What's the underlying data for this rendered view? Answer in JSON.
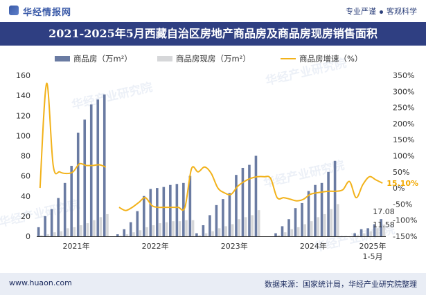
{
  "header": {
    "brand": "华经情报网",
    "slogan_left": "专业严谨",
    "slogan_right": "客观科学"
  },
  "title": "2021-2025年5月西藏自治区房地产商品房及商品房现房销售面积",
  "footer": {
    "website": "www.huaon.com",
    "source": "数据来源：国家统计局，华经产业研究院整理"
  },
  "watermarks": [
    "华经产业研究院",
    "www.huaon.com"
  ],
  "colors": {
    "brand_blue": "#2f3f82",
    "bar_main": "#6a7ba2",
    "bar_secondary": "#d6d7d9",
    "line": "#f2b21a",
    "end_label_growth": "#f2a900"
  },
  "chart_data": {
    "type": "bar",
    "legend_position": "top",
    "x_tick_labels": [
      "2021年",
      "2022年",
      "2023年",
      "2024年",
      "2025年",
      "1-5月"
    ],
    "y_left_ticks": [
      0,
      20,
      40,
      60,
      80,
      100,
      120,
      140,
      160
    ],
    "y_right_ticks": [
      "-150%",
      "-100%",
      "-50%",
      "0%",
      "50%",
      "100%",
      "150%",
      "200%",
      "250%",
      "300%",
      "350%"
    ],
    "ylim_left": [
      0,
      160
    ],
    "ylim_right": [
      -150,
      350
    ],
    "end_labels": {
      "area": "17.08",
      "existing": "11.58",
      "growth": "15.10%"
    },
    "categories": [
      "2021-01",
      "2021-02",
      "2021-03",
      "2021-04",
      "2021-05",
      "2021-06",
      "2021-07",
      "2021-08",
      "2021-09",
      "2021-10",
      "2021-11",
      "2021-12",
      "2022-01",
      "2022-02",
      "2022-03",
      "2022-04",
      "2022-05",
      "2022-06",
      "2022-07",
      "2022-08",
      "2022-09",
      "2022-10",
      "2022-11",
      "2022-12",
      "2023-01",
      "2023-02",
      "2023-03",
      "2023-04",
      "2023-05",
      "2023-06",
      "2023-07",
      "2023-08",
      "2023-09",
      "2023-10",
      "2023-11",
      "2023-12",
      "2024-01",
      "2024-02",
      "2024-03",
      "2024-04",
      "2024-05",
      "2024-06",
      "2024-07",
      "2024-08",
      "2024-09",
      "2024-10",
      "2024-11",
      "2024-12",
      "2025-01",
      "2025-02",
      "2025-03",
      "2025-04",
      "2025-05"
    ],
    "series": [
      {
        "name": "商品房（万m²）",
        "kind": "bar",
        "axis": "left",
        "values": [
          9,
          20,
          27,
          38,
          53,
          70,
          103,
          116,
          131,
          136,
          141,
          0,
          2,
          7,
          14,
          25,
          40,
          47,
          48,
          49,
          51,
          52,
          53,
          60,
          3,
          11,
          21,
          31,
          37,
          43,
          61,
          68,
          71,
          80,
          0,
          0,
          3,
          10,
          17,
          28,
          33,
          45,
          51,
          53,
          64,
          75,
          0,
          0,
          3,
          7,
          8,
          12,
          17.08
        ]
      },
      {
        "name": "商品房现房（万m²）",
        "kind": "bar",
        "axis": "left",
        "values": [
          1,
          2,
          4,
          5,
          8,
          9,
          11,
          13,
          16,
          19,
          22,
          0,
          0.5,
          2,
          4,
          6,
          9,
          11,
          13,
          14,
          15,
          15,
          16,
          16,
          1,
          3,
          5,
          8,
          10,
          12,
          17,
          19,
          21,
          26,
          0,
          0,
          1,
          4,
          7,
          9,
          12,
          15,
          19,
          22,
          27,
          32,
          0,
          0,
          1,
          3,
          5,
          8,
          11.58
        ]
      },
      {
        "name": "商品房增速（%）",
        "kind": "line",
        "axis": "right",
        "values": [
          0,
          325,
          70,
          50,
          45,
          50,
          75,
          70,
          70,
          72,
          65,
          null,
          -60,
          -70,
          -60,
          -45,
          -30,
          -55,
          -60,
          -60,
          -60,
          -60,
          -60,
          60,
          50,
          65,
          45,
          0,
          -15,
          -20,
          5,
          20,
          30,
          35,
          35,
          30,
          -30,
          -30,
          -35,
          -40,
          -35,
          -20,
          -15,
          -12,
          -10,
          -10,
          -5,
          20,
          -30,
          10,
          35,
          25,
          15.1
        ]
      }
    ]
  }
}
